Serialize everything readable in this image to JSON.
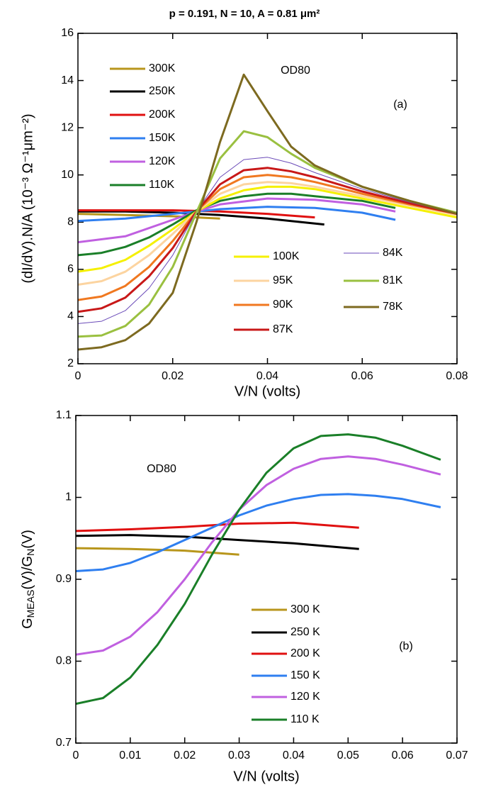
{
  "chart_data": [
    {
      "type": "line",
      "title": "p = 0.191, N = 10, A = 0.81 μm²",
      "x_label": "V/N (volts)",
      "y_label": "(dI/dV).N/A  (10⁻³ Ω⁻¹μm⁻²)",
      "annotations": [
        "OD80",
        "(a)"
      ],
      "xlim": [
        0,
        0.08
      ],
      "xticks": [
        0,
        0.02,
        0.04,
        0.06,
        0.08
      ],
      "ylim": [
        2,
        16
      ],
      "yticks": [
        2,
        4,
        6,
        8,
        10,
        12,
        14,
        16
      ],
      "series": [
        {
          "name": "300K",
          "color": "#b8961c",
          "x": [
            0,
            0.01,
            0.02,
            0.03
          ],
          "values": [
            8.35,
            8.3,
            8.25,
            8.15
          ]
        },
        {
          "name": "250K",
          "color": "#000000",
          "x": [
            0,
            0.01,
            0.02,
            0.03,
            0.04,
            0.052
          ],
          "values": [
            8.45,
            8.45,
            8.4,
            8.3,
            8.15,
            7.9
          ]
        },
        {
          "name": "200K",
          "color": "#e01010",
          "x": [
            0,
            0.01,
            0.02,
            0.03,
            0.04,
            0.05
          ],
          "values": [
            8.5,
            8.5,
            8.5,
            8.45,
            8.35,
            8.2
          ]
        },
        {
          "name": "150K",
          "color": "#2f7ff0",
          "x": [
            0,
            0.01,
            0.02,
            0.03,
            0.04,
            0.05,
            0.06,
            0.067
          ],
          "values": [
            8.05,
            8.15,
            8.35,
            8.55,
            8.65,
            8.6,
            8.4,
            8.1
          ]
        },
        {
          "name": "120K",
          "color": "#c060e0",
          "x": [
            0,
            0.01,
            0.02,
            0.025,
            0.03,
            0.04,
            0.05,
            0.06,
            0.067
          ],
          "values": [
            7.15,
            7.4,
            8.1,
            8.45,
            8.75,
            9.0,
            8.95,
            8.75,
            8.45
          ]
        },
        {
          "name": "110K",
          "color": "#1a7f28",
          "x": [
            0,
            0.005,
            0.01,
            0.015,
            0.02,
            0.025,
            0.03,
            0.035,
            0.04,
            0.045,
            0.05,
            0.06,
            0.067
          ],
          "values": [
            6.6,
            6.7,
            6.95,
            7.35,
            7.9,
            8.5,
            8.9,
            9.1,
            9.2,
            9.2,
            9.1,
            8.9,
            8.6
          ]
        },
        {
          "name": "100K",
          "color": "#f5f000",
          "x": [
            0,
            0.005,
            0.01,
            0.015,
            0.02,
            0.025,
            0.03,
            0.035,
            0.04,
            0.045,
            0.05,
            0.06,
            0.07,
            0.08
          ],
          "values": [
            5.9,
            6.05,
            6.4,
            7.0,
            7.7,
            8.45,
            9.0,
            9.35,
            9.5,
            9.5,
            9.4,
            9.0,
            8.6,
            8.2
          ]
        },
        {
          "name": "95K",
          "color": "#fcd4a0",
          "x": [
            0,
            0.005,
            0.01,
            0.015,
            0.02,
            0.025,
            0.03,
            0.035,
            0.04,
            0.045,
            0.05,
            0.06,
            0.07,
            0.08
          ],
          "values": [
            5.35,
            5.5,
            5.9,
            6.6,
            7.5,
            8.45,
            9.2,
            9.6,
            9.7,
            9.65,
            9.5,
            9.1,
            8.7,
            8.3
          ]
        },
        {
          "name": "90K",
          "color": "#f07820",
          "x": [
            0,
            0.005,
            0.01,
            0.015,
            0.02,
            0.025,
            0.03,
            0.035,
            0.04,
            0.045,
            0.05,
            0.06,
            0.07,
            0.08
          ],
          "values": [
            4.7,
            4.85,
            5.3,
            6.1,
            7.2,
            8.45,
            9.4,
            9.9,
            10.0,
            9.9,
            9.7,
            9.2,
            8.75,
            8.35
          ]
        },
        {
          "name": "87K",
          "color": "#c81818",
          "x": [
            0,
            0.005,
            0.01,
            0.015,
            0.02,
            0.025,
            0.03,
            0.035,
            0.04,
            0.045,
            0.05,
            0.06,
            0.07,
            0.08
          ],
          "values": [
            4.2,
            4.35,
            4.8,
            5.7,
            6.9,
            8.45,
            9.6,
            10.2,
            10.3,
            10.15,
            9.9,
            9.3,
            8.8,
            8.35
          ]
        },
        {
          "name": "84K",
          "color": "#6a4ab8",
          "line_width": 1,
          "x": [
            0,
            0.005,
            0.01,
            0.015,
            0.02,
            0.025,
            0.03,
            0.035,
            0.04,
            0.045,
            0.05,
            0.06,
            0.07,
            0.08
          ],
          "values": [
            3.7,
            3.8,
            4.25,
            5.2,
            6.6,
            8.45,
            9.9,
            10.65,
            10.75,
            10.5,
            10.1,
            9.4,
            8.85,
            8.35
          ]
        },
        {
          "name": "81K",
          "color": "#9ac040",
          "x": [
            0,
            0.005,
            0.01,
            0.015,
            0.02,
            0.025,
            0.03,
            0.035,
            0.04,
            0.045,
            0.05,
            0.06,
            0.07,
            0.08
          ],
          "values": [
            3.15,
            3.2,
            3.6,
            4.5,
            6.1,
            8.4,
            10.7,
            11.85,
            11.6,
            10.9,
            10.3,
            9.5,
            8.9,
            8.4
          ]
        },
        {
          "name": "78K",
          "color": "#7d6a20",
          "x": [
            0,
            0.005,
            0.01,
            0.015,
            0.02,
            0.025,
            0.03,
            0.035,
            0.04,
            0.045,
            0.05,
            0.06,
            0.07,
            0.08
          ],
          "values": [
            2.6,
            2.7,
            3.0,
            3.7,
            5.0,
            8.0,
            11.4,
            14.25,
            12.7,
            11.2,
            10.4,
            9.5,
            8.9,
            8.35
          ]
        }
      ]
    },
    {
      "type": "line",
      "x_label": "V/N (volts)",
      "y_label": [
        "G",
        "MEAS",
        "(V)/G",
        "N",
        "(V)"
      ],
      "annotations": [
        "OD80",
        "(b)"
      ],
      "xlim": [
        0,
        0.07
      ],
      "xticks": [
        0,
        0.01,
        0.02,
        0.03,
        0.04,
        0.05,
        0.06,
        0.07
      ],
      "ylim": [
        0.7,
        1.1
      ],
      "yticks": [
        0.7,
        0.8,
        0.9,
        1,
        1.1
      ],
      "series": [
        {
          "name": "300 K",
          "color": "#b8961c",
          "x": [
            0,
            0.01,
            0.02,
            0.03
          ],
          "values": [
            0.938,
            0.937,
            0.935,
            0.93
          ]
        },
        {
          "name": "250 K",
          "color": "#000000",
          "x": [
            0,
            0.01,
            0.02,
            0.03,
            0.04,
            0.052
          ],
          "values": [
            0.953,
            0.954,
            0.952,
            0.948,
            0.944,
            0.937
          ]
        },
        {
          "name": "200 K",
          "color": "#e01010",
          "x": [
            0,
            0.01,
            0.02,
            0.03,
            0.04,
            0.052
          ],
          "values": [
            0.959,
            0.961,
            0.964,
            0.968,
            0.969,
            0.963
          ]
        },
        {
          "name": "150 K",
          "color": "#2f7ff0",
          "x": [
            0,
            0.005,
            0.01,
            0.015,
            0.02,
            0.025,
            0.03,
            0.035,
            0.04,
            0.045,
            0.05,
            0.055,
            0.06,
            0.067
          ],
          "values": [
            0.91,
            0.912,
            0.92,
            0.933,
            0.948,
            0.963,
            0.978,
            0.99,
            0.998,
            1.003,
            1.004,
            1.002,
            0.998,
            0.988
          ]
        },
        {
          "name": "120 K",
          "color": "#c060e0",
          "x": [
            0,
            0.005,
            0.01,
            0.015,
            0.02,
            0.025,
            0.03,
            0.035,
            0.04,
            0.045,
            0.05,
            0.055,
            0.06,
            0.067
          ],
          "values": [
            0.808,
            0.813,
            0.83,
            0.86,
            0.9,
            0.945,
            0.985,
            1.015,
            1.035,
            1.047,
            1.05,
            1.047,
            1.04,
            1.028
          ]
        },
        {
          "name": "110 K",
          "color": "#1a7f28",
          "x": [
            0,
            0.005,
            0.01,
            0.015,
            0.02,
            0.025,
            0.03,
            0.035,
            0.04,
            0.045,
            0.05,
            0.055,
            0.06,
            0.067
          ],
          "values": [
            0.748,
            0.755,
            0.78,
            0.82,
            0.87,
            0.93,
            0.985,
            1.03,
            1.06,
            1.075,
            1.077,
            1.073,
            1.063,
            1.046
          ]
        }
      ]
    }
  ]
}
